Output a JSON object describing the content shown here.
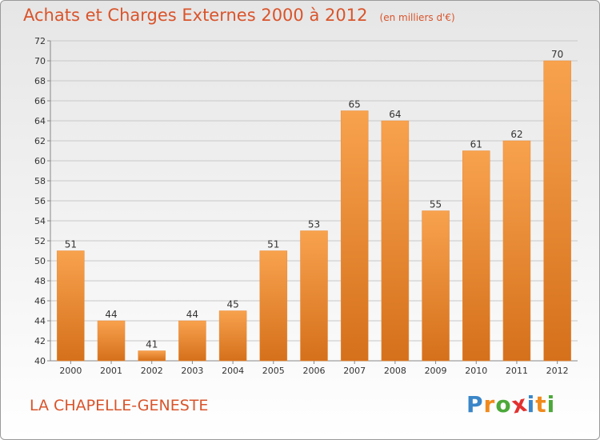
{
  "title": "Achats et Charges Externes 2000 à 2012",
  "unit_note": "(en milliers d'€)",
  "commune": "LA CHAPELLE-GENESTE",
  "brand": {
    "letters": [
      "P",
      "r",
      "o",
      "x",
      "i",
      "t",
      "i"
    ],
    "colors": [
      "#3a86c8",
      "#f08a1c",
      "#4ca83a",
      "#e2312f",
      "#3a86c8",
      "#f08a1c",
      "#4ca83a"
    ]
  },
  "colors": {
    "bar_top": "#f8a24e",
    "bar_bottom": "#d5701b",
    "title": "#d9542b",
    "text": "#333333",
    "grid": "#c8c8c8"
  },
  "chart_data": {
    "type": "bar",
    "title": "Achats et Charges Externes 2000 à 2012",
    "subtitle": "(en milliers d'€)",
    "xlabel": "",
    "ylabel": "",
    "categories": [
      "2000",
      "2001",
      "2002",
      "2003",
      "2004",
      "2005",
      "2006",
      "2007",
      "2008",
      "2009",
      "2010",
      "2011",
      "2012"
    ],
    "values": [
      51,
      44,
      41,
      44,
      45,
      51,
      53,
      65,
      64,
      55,
      61,
      62,
      70
    ],
    "ylim": [
      40,
      72
    ],
    "yticks": [
      40,
      42,
      44,
      46,
      48,
      50,
      52,
      54,
      56,
      58,
      60,
      62,
      64,
      66,
      68,
      70,
      72
    ],
    "grid": true,
    "data_labels": true
  }
}
